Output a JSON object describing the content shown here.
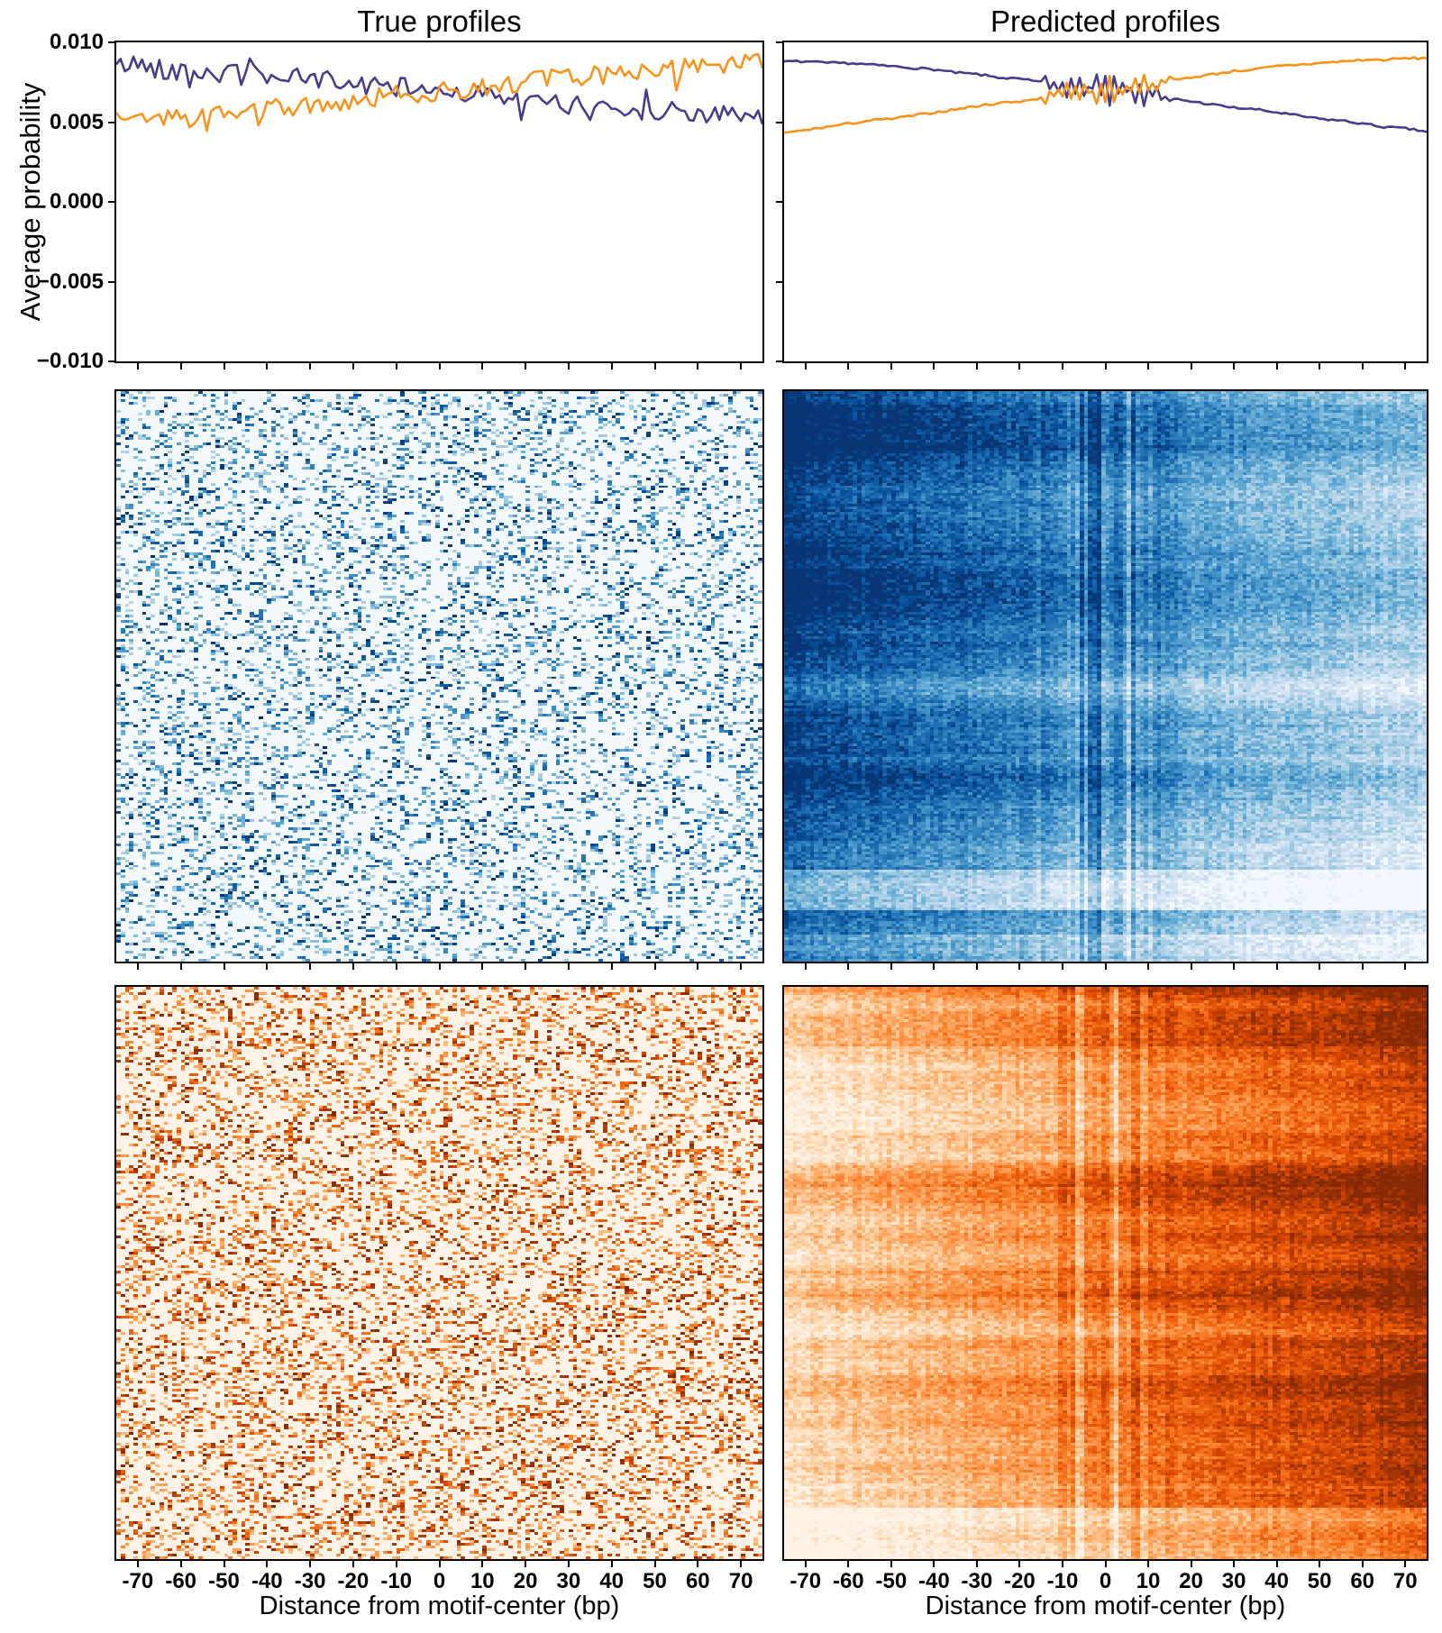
{
  "figure": {
    "columns": [
      {
        "title": "True profiles"
      },
      {
        "title": "Predicted profiles"
      }
    ],
    "ylabel": "Average probability",
    "xlabel": "Distance from motif-center (bp)",
    "y_ticks": [
      "0.010",
      "0.005",
      "0.000",
      "−0.005",
      "−0.010"
    ],
    "x_ticks": [
      "-70",
      "-60",
      "-50",
      "-40",
      "-30",
      "-20",
      "-10",
      "0",
      "10",
      "20",
      "30",
      "40",
      "50",
      "60",
      "70"
    ],
    "x_tick_bp": [
      -70,
      -60,
      -50,
      -40,
      -30,
      -20,
      -10,
      0,
      10,
      20,
      30,
      40,
      50,
      60,
      70
    ],
    "ylim": [
      -0.01,
      0.01
    ],
    "xlim_bp": [
      -75,
      75
    ],
    "colors": {
      "purple": "#483d8b",
      "orange": "#f8941d",
      "spine": "#000000"
    },
    "colormaps": {
      "Blues": [
        "#f7fbff",
        "#deebf7",
        "#c6dbef",
        "#9ecae1",
        "#6baed6",
        "#4292c6",
        "#2171b5",
        "#08519c",
        "#08306b"
      ],
      "Oranges": [
        "#fff5eb",
        "#fee6ce",
        "#fdd0a2",
        "#fdae6b",
        "#fd8d3c",
        "#f16913",
        "#d94801",
        "#a63603",
        "#7f2704"
      ]
    }
  },
  "chart_data": [
    {
      "panel": "true-line",
      "type": "line",
      "column": 0,
      "title": "True profiles",
      "ylabel": "Average probability",
      "xlim_bp": [
        -75,
        75
      ],
      "ylim": [
        -0.01,
        0.01
      ],
      "x_bp": [
        -75,
        -70,
        -65,
        -60,
        -55,
        -50,
        -45,
        -40,
        -35,
        -30,
        -25,
        -20,
        -15,
        -10,
        -5,
        0,
        5,
        10,
        15,
        20,
        25,
        30,
        35,
        40,
        45,
        50,
        55,
        60,
        65,
        70,
        75
      ],
      "series": [
        {
          "name": "purple",
          "color": "#483d8b",
          "trend": [
            0.0085,
            0.0087,
            0.0083,
            0.0082,
            0.0081,
            0.008,
            0.0081,
            0.0079,
            0.0078,
            0.0077,
            0.0076,
            0.0074,
            0.0073,
            0.0072,
            0.0071,
            0.007,
            0.0069,
            0.0067,
            0.0065,
            0.0063,
            0.0062,
            0.0061,
            0.006,
            0.0059,
            0.0058,
            0.0057,
            0.0057,
            0.0056,
            0.0055,
            0.0053,
            0.0051
          ]
        },
        {
          "name": "orange",
          "color": "#f8941d",
          "trend": [
            0.0054,
            0.0053,
            0.0052,
            0.0053,
            0.0054,
            0.0055,
            0.0056,
            0.0057,
            0.0059,
            0.006,
            0.0062,
            0.0064,
            0.0065,
            0.0067,
            0.0068,
            0.0069,
            0.0071,
            0.0072,
            0.0074,
            0.0075,
            0.0077,
            0.0078,
            0.0079,
            0.008,
            0.0082,
            0.0083,
            0.0084,
            0.0085,
            0.0085,
            0.0086,
            0.0088
          ]
        }
      ],
      "noise_amplitude": 0.0006,
      "spike_prob": 0.08,
      "seed": 42
    },
    {
      "panel": "pred-line",
      "type": "line",
      "column": 1,
      "title": "Predicted profiles",
      "xlim_bp": [
        -75,
        75
      ],
      "ylim": [
        -0.01,
        0.01
      ],
      "x_bp": [
        -75,
        -70,
        -65,
        -60,
        -55,
        -50,
        -45,
        -40,
        -35,
        -30,
        -25,
        -20,
        -15,
        -10,
        -5,
        0,
        5,
        10,
        15,
        20,
        25,
        30,
        35,
        40,
        45,
        50,
        55,
        60,
        65,
        70,
        75
      ],
      "series": [
        {
          "name": "purple",
          "color": "#483d8b",
          "trend": [
            0.0088,
            0.0088,
            0.0087,
            0.0087,
            0.0086,
            0.0085,
            0.0084,
            0.0083,
            0.0081,
            0.008,
            0.0078,
            0.0077,
            0.0075,
            0.0074,
            0.0072,
            0.0071,
            0.0069,
            0.0067,
            0.0065,
            0.0063,
            0.0061,
            0.0059,
            0.0058,
            0.0056,
            0.0054,
            0.0052,
            0.0051,
            0.0049,
            0.0047,
            0.0046,
            0.0044
          ]
        },
        {
          "name": "orange",
          "color": "#f8941d",
          "trend": [
            0.0043,
            0.0045,
            0.0047,
            0.0049,
            0.0051,
            0.0052,
            0.0054,
            0.0056,
            0.0058,
            0.006,
            0.0062,
            0.0063,
            0.0065,
            0.0067,
            0.0069,
            0.007,
            0.0072,
            0.0074,
            0.0076,
            0.0078,
            0.008,
            0.0082,
            0.0083,
            0.0085,
            0.0086,
            0.0087,
            0.0088,
            0.0089,
            0.0089,
            0.009,
            0.009
          ]
        }
      ],
      "noise_amplitude": 7e-05,
      "center_oscillation": {
        "range_bp": 15,
        "amplitude": 0.0013
      },
      "seed": 7
    },
    {
      "panel": "true-blue",
      "type": "heatmap",
      "column": 0,
      "colormap": "Blues",
      "n_rows": 212,
      "n_cols": 150,
      "x_range_bp": [
        -75,
        75
      ],
      "pattern": {
        "style": "sparse",
        "density": 0.24,
        "speckle_value_range": [
          0.3,
          1.0
        ],
        "background_value": 0.015
      },
      "seed": 3
    },
    {
      "panel": "pred-blue",
      "type": "heatmap",
      "column": 1,
      "colormap": "Blues",
      "n_rows": 212,
      "n_cols": 150,
      "x_range_bp": [
        -75,
        75
      ],
      "pattern": {
        "style": "gradient",
        "left_value": 0.88,
        "right_value": 0.24,
        "row_shift_top": 0.1,
        "row_shift_bottom": -0.1,
        "row_band_amplitude": 0.1,
        "bands": [
          {
            "center": 0.875,
            "width": 0.035,
            "delta": -0.3
          },
          {
            "center": 0.985,
            "width": 0.03,
            "delta": -0.18
          },
          {
            "center": 0.06,
            "width": 0.04,
            "delta": 0.08
          }
        ],
        "center_stripe_amplitude": 0.26,
        "center_stripe_halfwidth_bp": 14,
        "column_noise": 0.045,
        "cell_noise": 0.13
      },
      "seed": 9
    },
    {
      "panel": "true-orange",
      "type": "heatmap",
      "column": 0,
      "colormap": "Oranges",
      "n_rows": 212,
      "n_cols": 150,
      "x_range_bp": [
        -75,
        75
      ],
      "pattern": {
        "style": "sparse",
        "density": 0.3,
        "speckle_value_range": [
          0.3,
          1.0
        ],
        "background_value": 0.015
      },
      "seed": 5
    },
    {
      "panel": "pred-orange",
      "type": "heatmap",
      "column": 1,
      "colormap": "Oranges",
      "n_rows": 212,
      "n_cols": 150,
      "x_range_bp": [
        -75,
        75
      ],
      "pattern": {
        "style": "gradient",
        "left_value": 0.18,
        "right_value": 0.88,
        "row_shift_top": 0.08,
        "row_shift_bottom": -0.08,
        "row_band_amplitude": 0.1,
        "bands": [
          {
            "center": 0.05,
            "width": 0.05,
            "delta": 0.12
          },
          {
            "center": 0.33,
            "width": 0.02,
            "delta": 0.1
          },
          {
            "center": 0.52,
            "width": 0.025,
            "delta": 0.1
          },
          {
            "center": 0.7,
            "width": 0.02,
            "delta": 0.08
          },
          {
            "center": 0.96,
            "width": 0.05,
            "delta": -0.2
          }
        ],
        "center_stripe_amplitude": 0.22,
        "center_stripe_halfwidth_bp": 14,
        "column_noise": 0.045,
        "cell_noise": 0.12
      },
      "seed": 13
    }
  ]
}
